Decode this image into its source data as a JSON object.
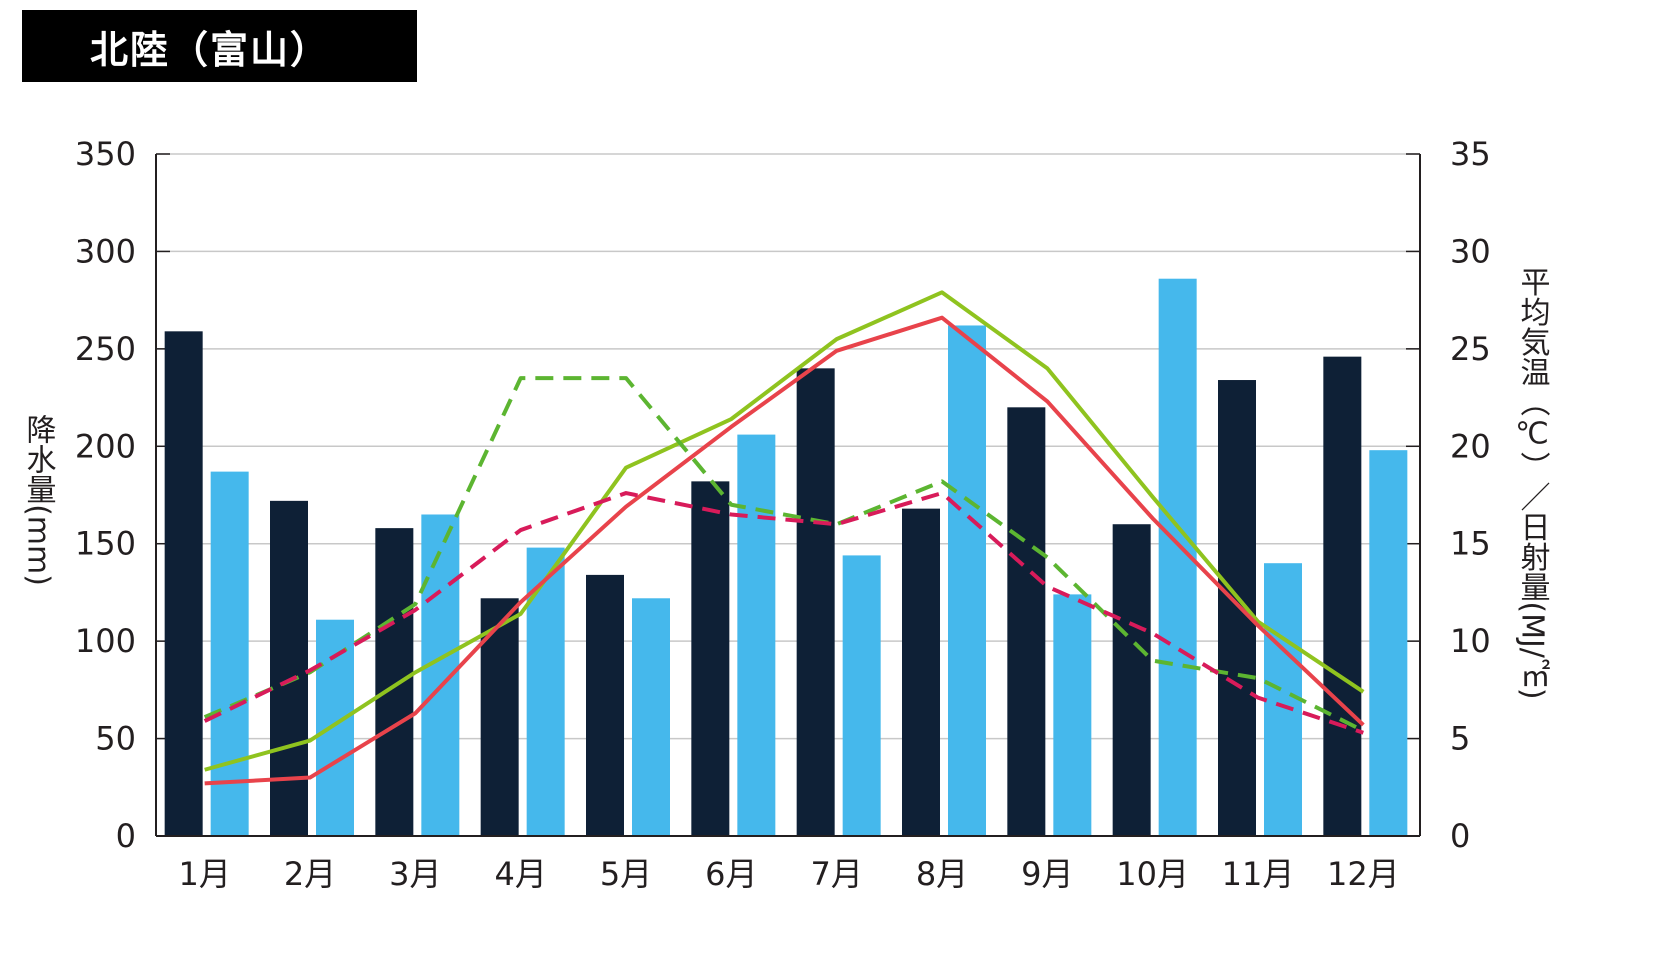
{
  "title": "北陸（富山）",
  "chart_data": {
    "type": "bar",
    "categories": [
      "1月",
      "2月",
      "3月",
      "4月",
      "5月",
      "6月",
      "7月",
      "8月",
      "9月",
      "10月",
      "11月",
      "12月"
    ],
    "ylabel_left": "降水量(mm)",
    "ylabel_right": "平均気温（℃）／日射量(MJ/㎡)",
    "ylim_left": [
      0,
      350
    ],
    "ylim_right": [
      0,
      35
    ],
    "yticks_left": [
      "0",
      "50",
      "100",
      "150",
      "200",
      "250",
      "300",
      "350"
    ],
    "yticks_right": [
      "0",
      "5",
      "10",
      "15",
      "20",
      "25",
      "30",
      "35"
    ],
    "grid": true,
    "bar_series": [
      {
        "color": "#0e2036",
        "values": [
          259,
          172,
          158,
          122,
          134,
          182,
          240,
          168,
          220,
          160,
          234,
          246
        ]
      },
      {
        "color": "#45b8ec",
        "values": [
          187,
          111,
          165,
          148,
          122,
          206,
          144,
          262,
          124,
          286,
          140,
          198
        ]
      }
    ],
    "line_series": [
      {
        "color": "#8fc31f",
        "dash": false,
        "values": [
          3.4,
          4.9,
          8.4,
          11.4,
          18.9,
          21.4,
          25.5,
          27.9,
          24.0,
          17.4,
          11.0,
          7.4
        ]
      },
      {
        "color": "#e8434b",
        "dash": false,
        "values": [
          2.7,
          3.0,
          6.3,
          12.0,
          16.9,
          21.0,
          24.9,
          26.6,
          22.3,
          16.3,
          10.8,
          5.7
        ]
      },
      {
        "color": "#5cb531",
        "dash": true,
        "values": [
          6.1,
          8.4,
          11.9,
          23.5,
          23.5,
          17.0,
          16.0,
          18.2,
          14.3,
          9.0,
          8.1,
          5.4
        ]
      },
      {
        "color": "#d81b5a",
        "dash": true,
        "values": [
          5.9,
          8.5,
          11.6,
          15.7,
          17.6,
          16.5,
          16.0,
          17.6,
          12.8,
          10.4,
          7.1,
          5.3
        ]
      }
    ]
  }
}
